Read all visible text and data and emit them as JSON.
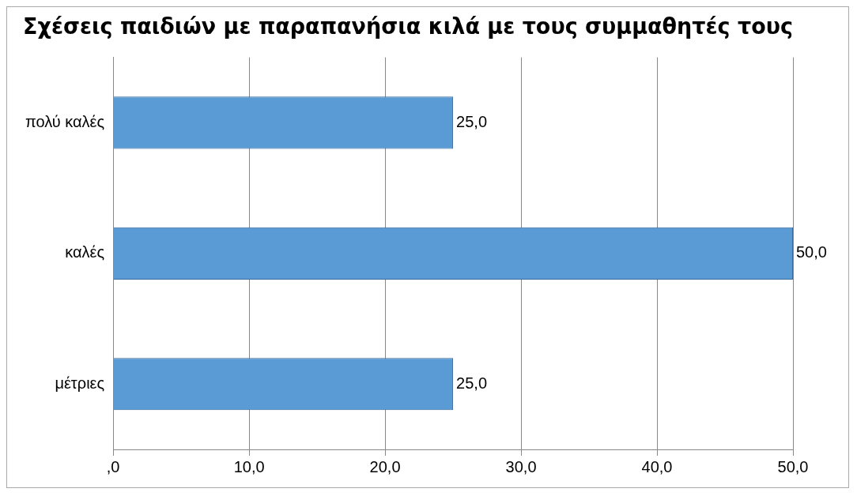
{
  "chart_data": {
    "type": "bar",
    "orientation": "horizontal",
    "title": "Σχέσεις παιδιών με παραπανήσια κιλά με τους συμμαθητές τους",
    "categories": [
      "πολύ καλές",
      "καλές",
      "μέτριες"
    ],
    "values": [
      25,
      50,
      25
    ],
    "color": "#5b9bd5",
    "value_labels": [
      "25,0",
      "50,0",
      "25,0"
    ],
    "xlim": [
      0,
      50
    ],
    "xticks": [
      {
        "value": 0,
        "label": ",0"
      },
      {
        "value": 10,
        "label": "10,0"
      },
      {
        "value": 20,
        "label": "20,0"
      },
      {
        "value": 30,
        "label": "30,0"
      },
      {
        "value": 40,
        "label": "40,0"
      },
      {
        "value": 50,
        "label": "50,0"
      }
    ],
    "grid": "x",
    "legend": false
  }
}
